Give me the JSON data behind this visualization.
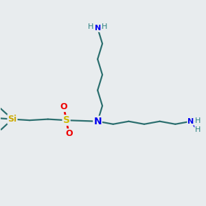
{
  "background_color": "#e8ecee",
  "bond_color": "#2a6e6e",
  "N_color": "#0000ee",
  "S_color": "#ccbb00",
  "O_color": "#ee0000",
  "Si_color": "#ccaa00",
  "H_color": "#2a8080",
  "figsize": [
    3.0,
    3.0
  ],
  "dpi": 100,
  "xlim": [
    0,
    10
  ],
  "ylim": [
    0,
    10
  ]
}
